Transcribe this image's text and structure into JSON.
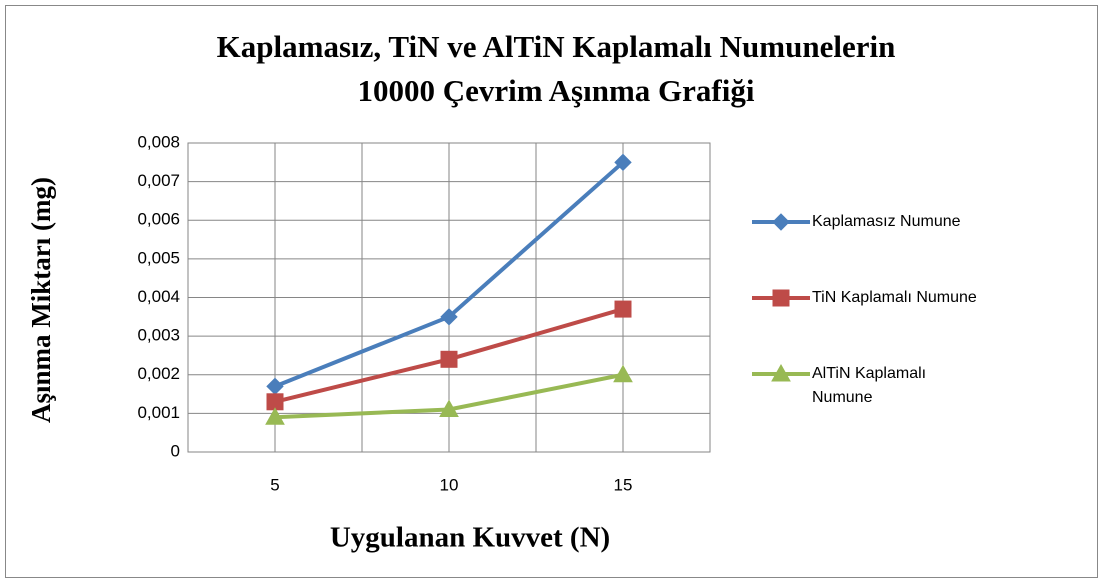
{
  "chart_data": {
    "type": "line",
    "title": [
      "Kaplamasız, TiN ve AlTiN Kaplamalı Numunelerin",
      "10000 Çevrim Aşınma Grafiği"
    ],
    "x_label": "Uygulanan Kuvvet (N)",
    "y_label": "Aşınma Miktarı (mg)",
    "categories": [
      "5",
      "10",
      "15"
    ],
    "series": [
      {
        "name": "Kaplamasız Numune",
        "color": "#4a7ebb",
        "marker": "diamond",
        "values": [
          0.0017,
          0.0035,
          0.0075
        ]
      },
      {
        "name": "TiN Kaplamalı Numune",
        "color": "#be4b48",
        "marker": "square",
        "values": [
          0.0013,
          0.0024,
          0.0037
        ]
      },
      {
        "name": "AlTiN Kaplamalı Numune",
        "color": "#98b954",
        "marker": "triangle",
        "values": [
          0.0009,
          0.0011,
          0.002
        ]
      }
    ],
    "ylim": [
      0,
      0.008
    ],
    "yticks": [
      0,
      {
        "value": 0.001,
        "label": "0,001"
      },
      {
        "value": 0.002,
        "label": "0,002"
      },
      {
        "value": 0.003,
        "label": "0,003"
      },
      {
        "value": 0.004,
        "label": "0,004"
      },
      {
        "value": 0.005,
        "label": "0,005"
      },
      {
        "value": 0.006,
        "label": "0,006"
      },
      {
        "value": 0.007,
        "label": "0,007"
      },
      {
        "value": 0.008,
        "label": "0,008"
      }
    ],
    "grid": true,
    "legend": "right"
  }
}
